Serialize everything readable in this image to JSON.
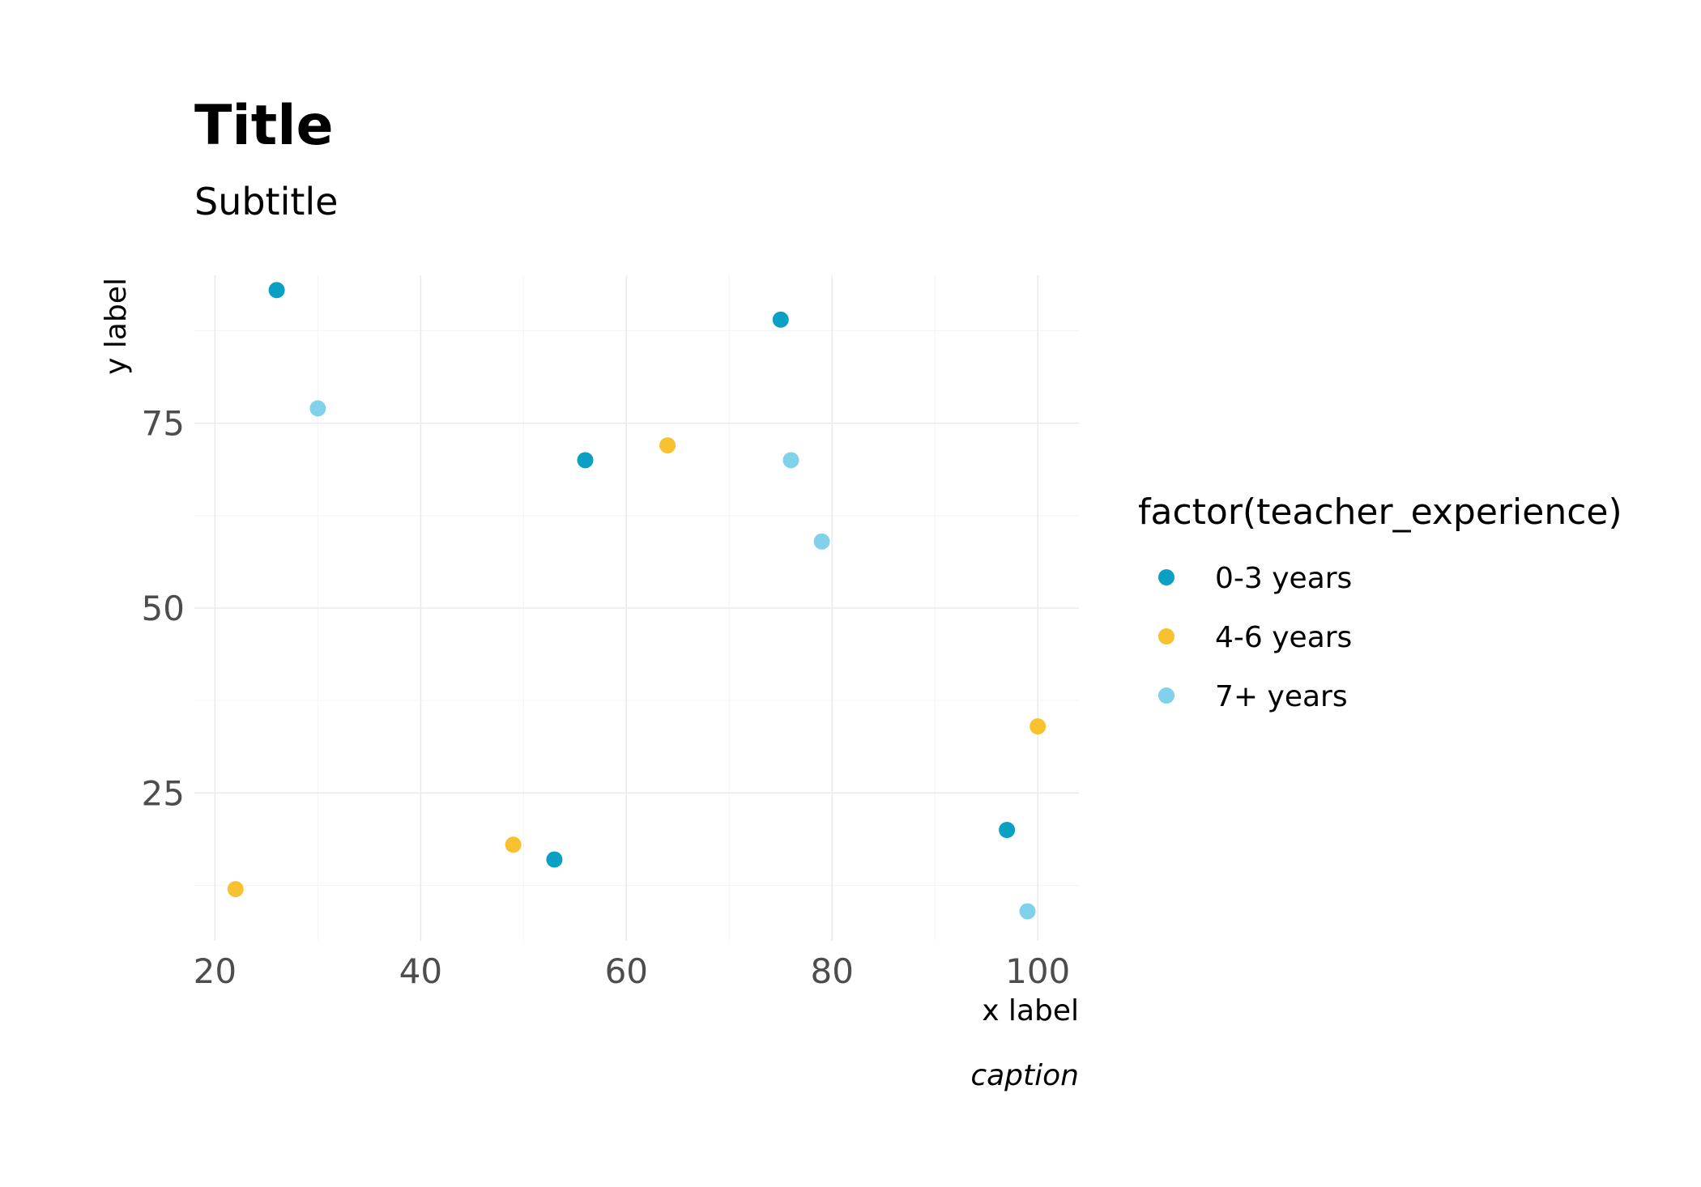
{
  "chart_data": {
    "type": "scatter",
    "title": "Title",
    "subtitle": "Subtitle",
    "xlabel": "x label",
    "ylabel": "y label",
    "caption": "caption",
    "xlim": [
      18,
      104
    ],
    "ylim": [
      5,
      95
    ],
    "x_ticks": [
      20,
      40,
      60,
      80,
      100
    ],
    "y_ticks": [
      25,
      50,
      75
    ],
    "grid": true,
    "legend_title": "factor(teacher_experience)",
    "legend_position": "right",
    "series": [
      {
        "name": "0-3 years",
        "color": "#0aa0c4",
        "points": [
          {
            "x": 26,
            "y": 93
          },
          {
            "x": 56,
            "y": 70
          },
          {
            "x": 75,
            "y": 89
          },
          {
            "x": 53,
            "y": 16
          },
          {
            "x": 97,
            "y": 20
          }
        ]
      },
      {
        "name": "4-6 years",
        "color": "#f8c12f",
        "points": [
          {
            "x": 64,
            "y": 72
          },
          {
            "x": 49,
            "y": 18
          },
          {
            "x": 22,
            "y": 12
          },
          {
            "x": 100,
            "y": 34
          }
        ]
      },
      {
        "name": "7+ years",
        "color": "#80d2ea",
        "points": [
          {
            "x": 30,
            "y": 77
          },
          {
            "x": 76,
            "y": 70
          },
          {
            "x": 79,
            "y": 59
          },
          {
            "x": 99,
            "y": 9
          }
        ]
      }
    ]
  }
}
